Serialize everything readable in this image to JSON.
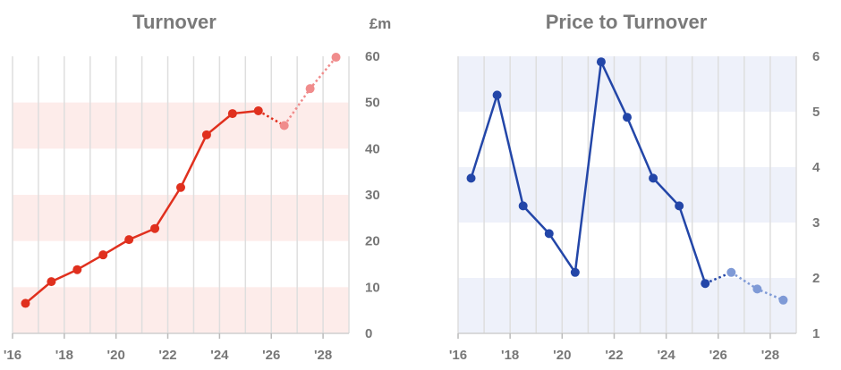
{
  "chart_data": [
    {
      "type": "line",
      "title": "Turnover",
      "unit_label": "£m",
      "xlim": [
        2016,
        2029
      ],
      "ylim": [
        0,
        60
      ],
      "x_ticks": [
        2016,
        2018,
        2020,
        2022,
        2024,
        2026,
        2028
      ],
      "x_tick_labels": [
        "'16",
        "'18",
        "'20",
        "'22",
        "'24",
        "'26",
        "'28"
      ],
      "y_ticks": [
        0,
        10,
        20,
        30,
        40,
        50,
        60
      ],
      "y_tick_labels": [
        "0",
        "10",
        "20",
        "30",
        "40",
        "50",
        "60"
      ],
      "y_axis_side": "right",
      "grid": "vertical lines, alternating horizontal bands",
      "colors": {
        "line": "#e0301e",
        "forecast": "#f08c8c",
        "band": "#fdecea"
      },
      "series": [
        {
          "actual": {
            "x": [
              2016.5,
              2017.5,
              2018.5,
              2019.5,
              2020.5,
              2021.5,
              2022.5,
              2023.5,
              2024.5,
              2025.5
            ],
            "y": [
              6.5,
              11.2,
              13.8,
              17,
              20.3,
              22.7,
              31.6,
              43,
              47.6,
              48.2
            ]
          },
          "forecast": {
            "x": [
              2025.5,
              2026.5,
              2027.5,
              2028.5
            ],
            "y": [
              48.2,
              45,
              53,
              59.8
            ]
          }
        }
      ]
    },
    {
      "type": "line",
      "title": "Price to Turnover",
      "xlim": [
        2016,
        2029
      ],
      "ylim": [
        1,
        6
      ],
      "x_ticks": [
        2016,
        2018,
        2020,
        2022,
        2024,
        2026,
        2028
      ],
      "x_tick_labels": [
        "'16",
        "'18",
        "'20",
        "'22",
        "'24",
        "'26",
        "'28"
      ],
      "y_ticks": [
        1,
        2,
        3,
        4,
        5,
        6
      ],
      "y_tick_labels": [
        "1",
        "2",
        "3",
        "4",
        "5",
        "6"
      ],
      "y_axis_side": "right",
      "grid": "vertical lines, alternating horizontal bands",
      "colors": {
        "line": "#2346a8",
        "forecast": "#7f9ad6",
        "band": "#eef1fa"
      },
      "series": [
        {
          "actual": {
            "x": [
              2016.5,
              2017.5,
              2018.5,
              2019.5,
              2020.5,
              2021.5,
              2022.5,
              2023.5,
              2024.5,
              2025.5
            ],
            "y": [
              3.8,
              5.3,
              3.3,
              2.8,
              2.1,
              5.9,
              4.9,
              3.8,
              3.3,
              1.9
            ]
          },
          "forecast": {
            "x": [
              2025.5,
              2026.5,
              2027.5,
              2028.5
            ],
            "y": [
              1.9,
              2.1,
              1.8,
              1.6
            ]
          }
        }
      ]
    }
  ]
}
